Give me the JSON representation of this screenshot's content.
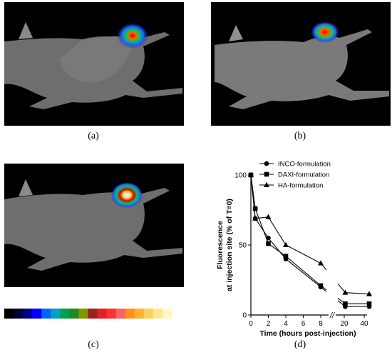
{
  "captions": {
    "a": "(a)",
    "b": "(b)",
    "c": "(c)",
    "d": "(d)"
  },
  "colors": {
    "background": "#000000",
    "mouse": "#7a7a7a",
    "heat": [
      "#1e1ebe",
      "#1e64ff",
      "#00c864",
      "#ffff00",
      "#ff6400",
      "#dc0000"
    ],
    "colorbar": [
      "#000000",
      "#00003c",
      "#000090",
      "#0000ff",
      "#0064ff",
      "#00a0c8",
      "#00a050",
      "#208a20",
      "#7a9a00",
      "#a02020",
      "#e02020",
      "#ff3030",
      "#ff6060",
      "#ff9020",
      "#ffb030",
      "#ffd060",
      "#ffe890",
      "#fff8c0",
      "#ffffff"
    ]
  },
  "chart_data": {
    "type": "line",
    "ylabel_line1": "Fluorescence",
    "ylabel_line2": "at injection site (% of T=0)",
    "xlabel": "Time (hours post-injection)",
    "x_ticks": [
      "0",
      "2",
      "4",
      "6",
      "8",
      "20",
      "40"
    ],
    "y_ticks": [
      "0",
      "50",
      "100"
    ],
    "ylim": [
      0,
      100
    ],
    "axis_break": "//",
    "legend_position": "top-right",
    "series": [
      {
        "name": "INCO-formulation",
        "marker": "circle",
        "x": [
          0,
          0.5,
          2,
          4,
          8,
          21,
          45
        ],
        "y": [
          100,
          69,
          55,
          40,
          20,
          6,
          6
        ]
      },
      {
        "name": "DAXI-formulation",
        "marker": "square",
        "x": [
          0,
          0.5,
          2,
          4,
          8,
          21,
          45
        ],
        "y": [
          100,
          76,
          51,
          42,
          21,
          8,
          8
        ]
      },
      {
        "name": "HA-formulation",
        "marker": "triangle",
        "x": [
          0,
          0.5,
          2,
          4,
          8,
          21,
          45
        ],
        "y": [
          100,
          69,
          70,
          50,
          37,
          16,
          15
        ]
      }
    ]
  }
}
